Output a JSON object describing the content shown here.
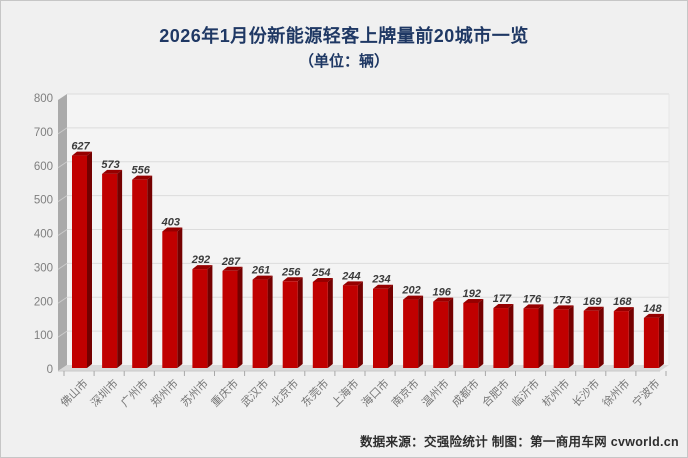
{
  "header": {
    "title_line1": "2026年1月份新能源轻客上牌量前20城市一览",
    "title_line2": "（单位：辆）"
  },
  "footer": {
    "source_note": "数据来源：交强险统计 制图：第一商用车网 cvworld.cn"
  },
  "chart_data": {
    "type": "bar",
    "style": "3d-column",
    "title": "2026年1月份新能源轻客上牌量前20城市一览",
    "subtitle": "（单位：辆）",
    "categories": [
      "佛山市",
      "深圳市",
      "广州市",
      "郑州市",
      "苏州市",
      "重庆市",
      "武汉市",
      "北京市",
      "东莞市",
      "上海市",
      "海口市",
      "南京市",
      "温州市",
      "成都市",
      "合肥市",
      "临沂市",
      "杭州市",
      "长沙市",
      "徐州市",
      "宁波市"
    ],
    "values": [
      627,
      573,
      556,
      403,
      292,
      287,
      261,
      256,
      254,
      244,
      234,
      202,
      196,
      192,
      177,
      176,
      173,
      169,
      168,
      148
    ],
    "xlabel": "",
    "ylabel": "",
    "ylim": [
      0,
      800
    ],
    "ytick_step": 100,
    "yticks": [
      0,
      100,
      200,
      300,
      400,
      500,
      600,
      700,
      800
    ],
    "grid": true,
    "legend": "none",
    "source_note": "数据来源：交强险统计 制图：第一商用车网 cvworld.cn"
  },
  "theme": {
    "bar_front_color": "#c00000",
    "bar_side_color": "#740000",
    "bar_top_color": "#960000",
    "title_color": "#1f3864",
    "axis_label_color": "#7f7f7f",
    "value_label_color": "#3b3b3b",
    "wall_color": "#aaaaaa",
    "wall_notch_color": "#cccccc",
    "floor_color": "#d9d9d9",
    "gridline_color": "#dcdcdc",
    "plot_bg_color": "#f4f4f4",
    "page_bg_color": "#f0f0f0",
    "tick_color": "#a8a8a8"
  }
}
